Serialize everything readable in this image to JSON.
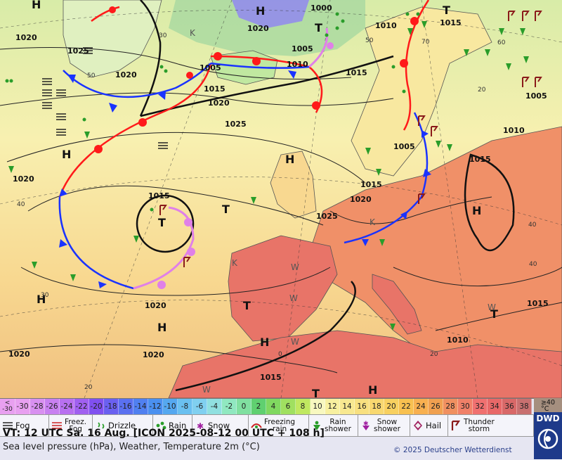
{
  "map": {
    "colors": {
      "land": "#e8735b",
      "sea": "#f8e49a",
      "warm_front": "#ff1a1a",
      "cold_front": "#1a33ff",
      "occlusion": "#e080e8",
      "isobar": "#222222"
    },
    "pressure_centers": [
      {
        "label": "H",
        "name": "high"
      },
      {
        "label": "H",
        "name": "high"
      },
      {
        "label": "H",
        "name": "high"
      },
      {
        "label": "H",
        "name": "high"
      },
      {
        "label": "H",
        "name": "high"
      },
      {
        "label": "H",
        "name": "high"
      },
      {
        "label": "H",
        "name": "high"
      },
      {
        "label": "H",
        "name": "high"
      },
      {
        "label": "H",
        "name": "high"
      },
      {
        "label": "T",
        "name": "low"
      },
      {
        "label": "T",
        "name": "low"
      },
      {
        "label": "T",
        "name": "low"
      },
      {
        "label": "T",
        "name": "low"
      },
      {
        "label": "T",
        "name": "low"
      },
      {
        "label": "T",
        "name": "low"
      },
      {
        "label": "T",
        "name": "low"
      }
    ],
    "isobar_labels": [
      "1000",
      "1005",
      "1005",
      "1005",
      "1005",
      "1010",
      "1010",
      "1010",
      "1010",
      "1015",
      "1015",
      "1015",
      "1015",
      "1015",
      "1015",
      "1015",
      "1015",
      "1020",
      "1020",
      "1020",
      "1020",
      "1020",
      "1020",
      "1020",
      "1020",
      "1020",
      "1025",
      "1025",
      "1025"
    ],
    "grid_labels": [
      "30",
      "50",
      "60",
      "40",
      "40",
      "40",
      "30",
      "20",
      "20",
      "0",
      "20",
      "50",
      "70"
    ],
    "temperature_markers": [
      "K",
      "K",
      "K",
      "W",
      "W",
      "W",
      "W",
      "W"
    ]
  },
  "legend": {
    "scale_first": [
      "<",
      "-30"
    ],
    "scale": [
      "-30",
      "-28",
      "-26",
      "-24",
      "-22",
      "-20",
      "-18",
      "-16",
      "-14",
      "-12",
      "-10",
      "-8",
      "-6",
      "-4",
      "-2",
      "0",
      "2",
      "4",
      "6",
      "8",
      "10",
      "12",
      "14",
      "16",
      "18",
      "20",
      "22",
      "24",
      "26",
      "28",
      "30",
      "32",
      "34",
      "36",
      "38"
    ],
    "scale_colors": [
      "#e8a0f0",
      "#d890f0",
      "#c880f0",
      "#b870f0",
      "#a060f0",
      "#8050f0",
      "#6a60f0",
      "#5a70f0",
      "#5080f0",
      "#4a90f0",
      "#55a8f0",
      "#6ac0f0",
      "#80d0f0",
      "#90e0e0",
      "#90e8c0",
      "#80e0a0",
      "#60d070",
      "#80d860",
      "#a0e060",
      "#c0e860",
      "#f8f8c0",
      "#f8f0a0",
      "#f8e890",
      "#f8e080",
      "#f8d870",
      "#f8d060",
      "#f8c050",
      "#f8b050",
      "#f0a050",
      "#f09060",
      "#f08068",
      "#f07070",
      "#e86868",
      "#d86868",
      "#c87070"
    ],
    "scale_last": [
      "≥40",
      "°C"
    ],
    "weather_types": [
      {
        "icon": "fog-icon",
        "label": "Fog"
      },
      {
        "icon": "freezing-fog-icon",
        "label": "Freez.\nFog"
      },
      {
        "icon": "drizzle-icon",
        "label": "Drizzle"
      },
      {
        "icon": "rain-icon",
        "label": "Rain"
      },
      {
        "icon": "snow-icon",
        "label": "Snow"
      },
      {
        "icon": "freezing-rain-icon",
        "label": "Freezing\nrain"
      },
      {
        "icon": "rain-shower-icon",
        "label": "Rain\nshower"
      },
      {
        "icon": "snow-shower-icon",
        "label": "Snow\nshower"
      },
      {
        "icon": "hail-icon",
        "label": "Hail"
      },
      {
        "icon": "thunderstorm-icon",
        "label": "Thunder\nstorm"
      }
    ],
    "valid_time": "VT: 12 UTC Sa.  16 Aug. [ICON 2025-08-12  00 UTC + 108 h]",
    "description": "Sea level pressure (hPa), Weather, Temperature 2m (°C)",
    "copyright": "© 2025 Deutscher Wetterdienst",
    "logo_text": "DWD"
  }
}
